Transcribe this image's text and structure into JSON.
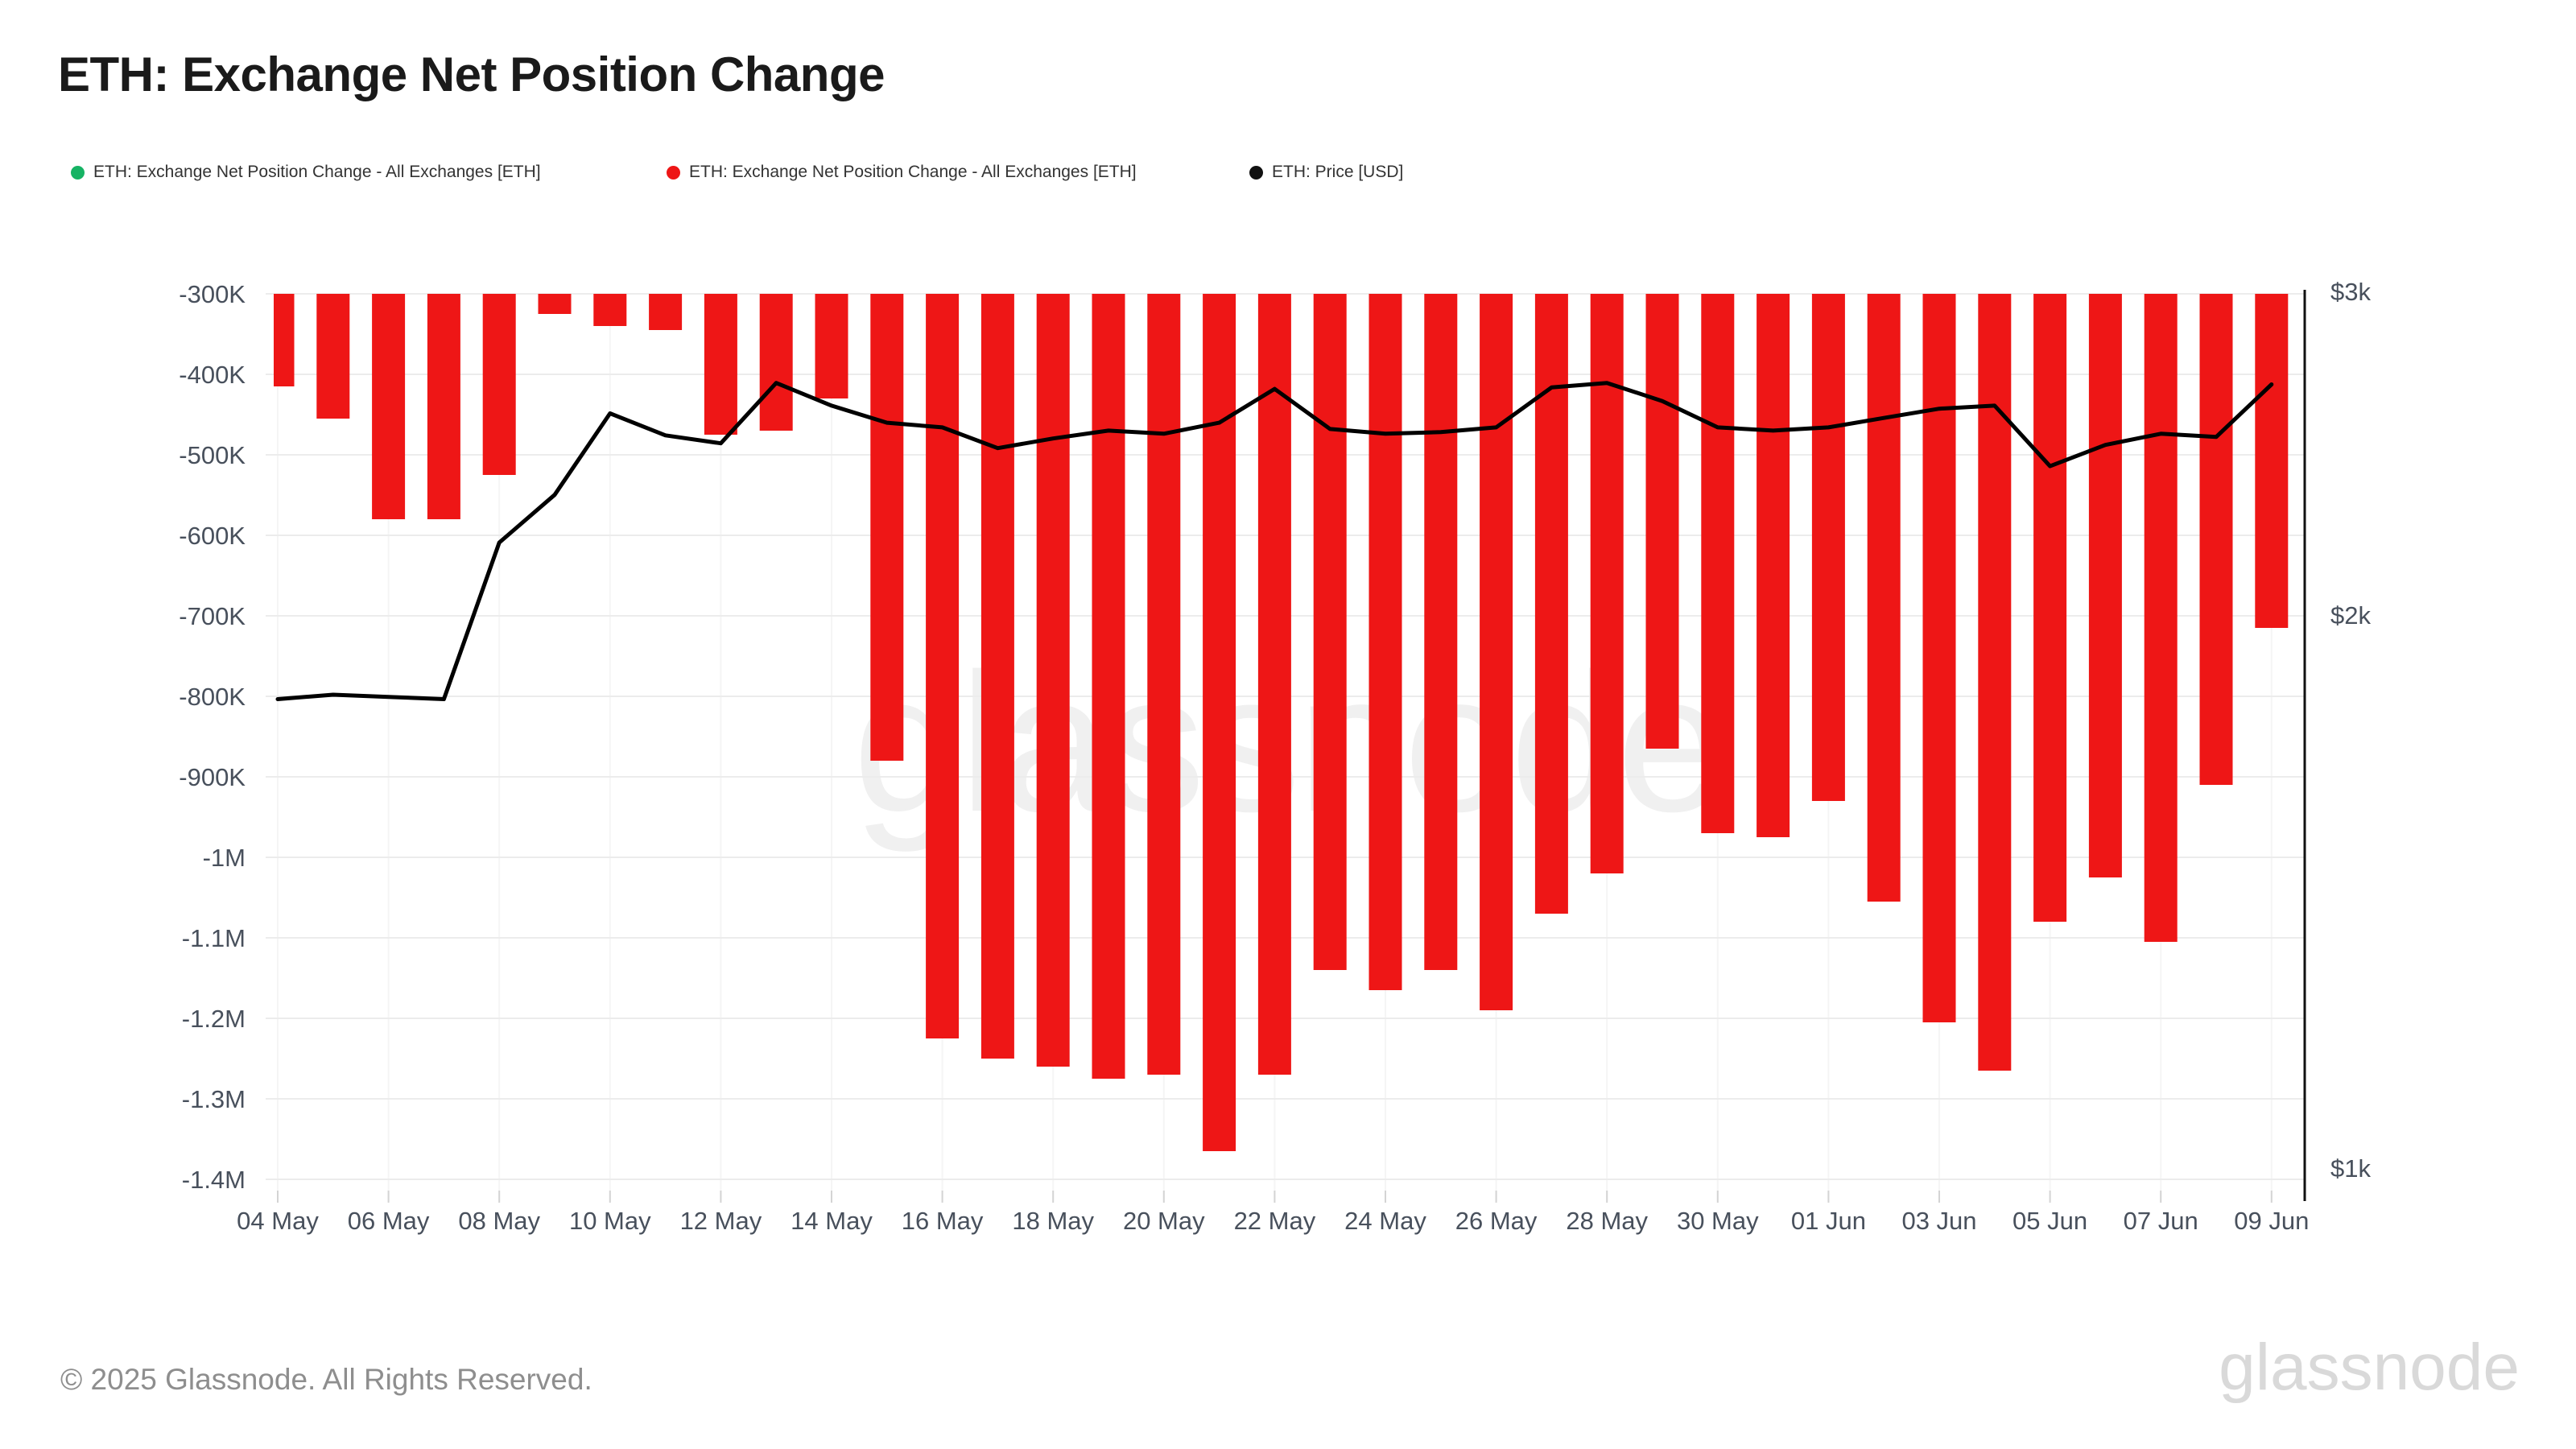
{
  "title": "ETH: Exchange Net Position Change",
  "legend": [
    {
      "label": "ETH: Exchange Net Position Change - All Exchanges [ETH]",
      "color": "#16b364"
    },
    {
      "label": "ETH: Exchange Net Position Change - All Exchanges [ETH]",
      "color": "#ee1616"
    },
    {
      "label": "ETH: Price [USD]",
      "color": "#111111"
    }
  ],
  "watermark": "glassnode",
  "footer": {
    "copyright": "© 2025 Glassnode. All Rights Reserved.",
    "logo": "glassnode"
  },
  "chart_data": {
    "type": "bar",
    "title": "ETH: Exchange Net Position Change",
    "x": [
      "04 May",
      "05 May",
      "06 May",
      "07 May",
      "08 May",
      "09 May",
      "10 May",
      "11 May",
      "12 May",
      "13 May",
      "14 May",
      "15 May",
      "16 May",
      "17 May",
      "18 May",
      "19 May",
      "20 May",
      "21 May",
      "22 May",
      "23 May",
      "24 May",
      "25 May",
      "26 May",
      "27 May",
      "28 May",
      "29 May",
      "30 May",
      "31 May",
      "01 Jun",
      "02 Jun",
      "03 Jun",
      "04 Jun",
      "05 Jun",
      "06 Jun",
      "07 Jun",
      "08 Jun",
      "09 Jun"
    ],
    "series": [
      {
        "name": "ETH: Exchange Net Position Change - All Exchanges [ETH]",
        "type": "bar",
        "color": "#ee1616",
        "axis": "left",
        "values": [
          -415000,
          -455000,
          -580000,
          -580000,
          -525000,
          -325000,
          -340000,
          -345000,
          -475000,
          -470000,
          -430000,
          -880000,
          -1225000,
          -1250000,
          -1260000,
          -1275000,
          -1270000,
          -1365000,
          -1270000,
          -1140000,
          -1165000,
          -1140000,
          -1190000,
          -1070000,
          -1020000,
          -865000,
          -970000,
          -975000,
          -930000,
          -1055000,
          -1205000,
          -1265000,
          -1080000,
          -1025000,
          -1105000,
          -910000,
          -715000
        ]
      },
      {
        "name": "ETH: Price [USD]",
        "type": "line",
        "color": "#000000",
        "axis": "right",
        "values": [
          1800,
          1810,
          1805,
          1800,
          2190,
          2325,
          2575,
          2505,
          2480,
          2675,
          2600,
          2545,
          2530,
          2465,
          2495,
          2520,
          2510,
          2545,
          2655,
          2525,
          2510,
          2515,
          2530,
          2660,
          2675,
          2615,
          2530,
          2520,
          2530,
          2560,
          2590,
          2600,
          2410,
          2475,
          2510,
          2500,
          2670
        ]
      }
    ],
    "left_axis": {
      "unit": "ETH",
      "scale": "linear",
      "range": [
        -1430000,
        -300000
      ],
      "tick_labels": [
        "-300K",
        "-400K",
        "-500K",
        "-600K",
        "-700K",
        "-800K",
        "-900K",
        "-1M",
        "-1.1M",
        "-1.2M",
        "-1.3M",
        "-1.4M"
      ],
      "tick_values": [
        -300000,
        -400000,
        -500000,
        -600000,
        -700000,
        -800000,
        -900000,
        -1000000,
        -1100000,
        -1200000,
        -1300000,
        -1400000
      ]
    },
    "right_axis": {
      "unit": "USD",
      "scale": "log",
      "range": [
        1000,
        3000
      ],
      "tick_labels": [
        "$3k",
        "$2k",
        "$1k"
      ],
      "tick_values": [
        3000,
        2000,
        1000
      ]
    },
    "x_axis": {
      "tick_labels": [
        "04 May",
        "06 May",
        "08 May",
        "10 May",
        "12 May",
        "14 May",
        "16 May",
        "18 May",
        "20 May",
        "22 May",
        "24 May",
        "26 May",
        "28 May",
        "30 May",
        "01 Jun",
        "03 Jun",
        "05 Jun",
        "07 Jun",
        "09 Jun"
      ]
    },
    "grid": true,
    "legend_position": "top-left"
  },
  "colors": {
    "grid_h": "#ececec",
    "grid_v": "#f5f5f5",
    "axis_text": "#48505c",
    "right_axis_line": "#111111",
    "tick_mark": "#d4d4d4"
  }
}
